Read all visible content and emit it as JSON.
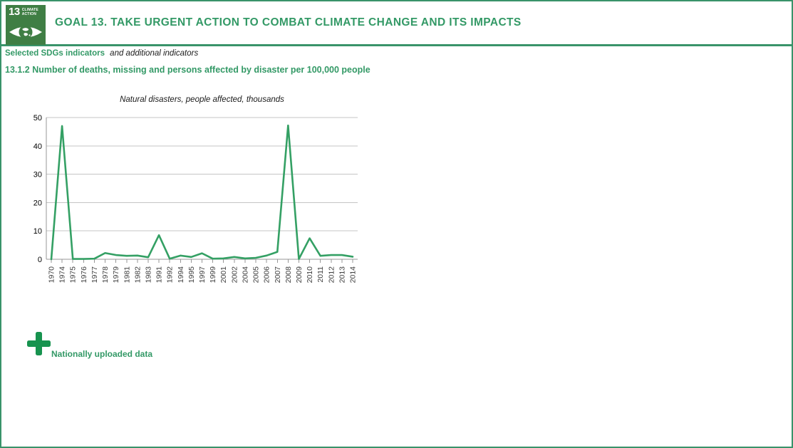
{
  "header": {
    "title": "GOAL 13. TAKE URGENT ACTION TO COMBAT CLIMATE CHANGE AND ITS IMPACTS",
    "badge_number": "13",
    "badge_label_line1": "CLIMATE",
    "badge_label_line2": "ACTION"
  },
  "indicators": {
    "selected_label": "Selected SDGs indicators",
    "additional_label": "and additional indicators",
    "indicator_title": "13.1.2 Number of deaths, missing and persons affected by disaster per 100,000 people"
  },
  "chart_data": {
    "type": "line",
    "title": "Natural disasters, people affected, thousands",
    "categories": [
      "1970",
      "1974",
      "1975",
      "1976",
      "1977",
      "1978",
      "1979",
      "1981",
      "1982",
      "1983",
      "1991",
      "1992",
      "1994",
      "1995",
      "1997",
      "1999",
      "2001",
      "2002",
      "2004",
      "2005",
      "2006",
      "2007",
      "2008",
      "2009",
      "2010",
      "2011",
      "2012",
      "2013",
      "2014"
    ],
    "values": [
      0,
      47,
      0.1,
      0.1,
      0.2,
      2.2,
      1.5,
      1.2,
      1.3,
      0.7,
      8.5,
      0.2,
      1.3,
      0.8,
      2.1,
      0.2,
      0.3,
      0.8,
      0.3,
      0.5,
      1.3,
      2.6,
      47.2,
      0.1,
      7.4,
      1.2,
      1.5,
      1.5,
      0.9
    ],
    "xlabel": "",
    "ylabel": "",
    "ylim": [
      0,
      50
    ],
    "yticks": [
      0,
      10,
      20,
      30,
      40,
      50
    ],
    "grid": "horizontal",
    "legend_position": "none",
    "line_color": "#34a064"
  },
  "footer": {
    "nationally_uploaded_label": "Nationally uploaded data",
    "plus_icon": "plus-icon"
  },
  "colors": {
    "accent_green": "#339966",
    "border_green": "#39936a",
    "badge_green": "#3F7E44",
    "line_green": "#34a064",
    "plus_green": "#17934F",
    "gridline_gray": "#c4c4c4",
    "axis_gray": "#979797"
  }
}
